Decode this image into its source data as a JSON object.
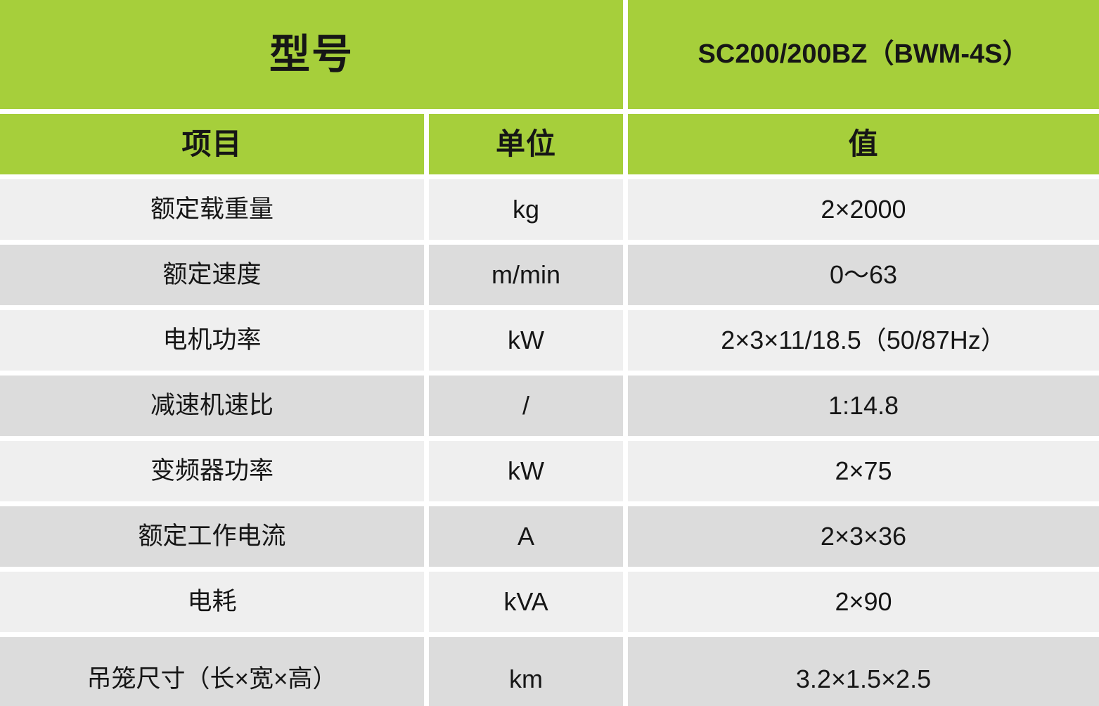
{
  "header": {
    "model_label": "型号",
    "model_value": "SC200/200BZ（BWM-4S）"
  },
  "columns": {
    "item": "项目",
    "unit": "单位",
    "value": "值"
  },
  "rows": [
    {
      "item": "额定载重量",
      "unit": "kg",
      "value": "2×2000"
    },
    {
      "item": "额定速度",
      "unit": "m/min",
      "value": "0～63"
    },
    {
      "item": "电机功率",
      "unit": "kW",
      "value": "2×3×11/18.5（50/87Hz）"
    },
    {
      "item": "减速机速比",
      "unit": "/",
      "value": "1:14.8"
    },
    {
      "item": "变频器功率",
      "unit": "kW",
      "value": "2×75"
    },
    {
      "item": "额定工作电流",
      "unit": "A",
      "value": "2×3×36"
    },
    {
      "item": "电耗",
      "unit": "kVA",
      "value": "2×90"
    },
    {
      "item": "吊笼尺寸（长×宽×高）",
      "unit": "km",
      "value": "3.2×1.5×2.5"
    }
  ],
  "colors": {
    "green": "#a6cf3b",
    "row_light": "#efefef",
    "row_dark": "#dcdcdc",
    "text": "#161616"
  }
}
